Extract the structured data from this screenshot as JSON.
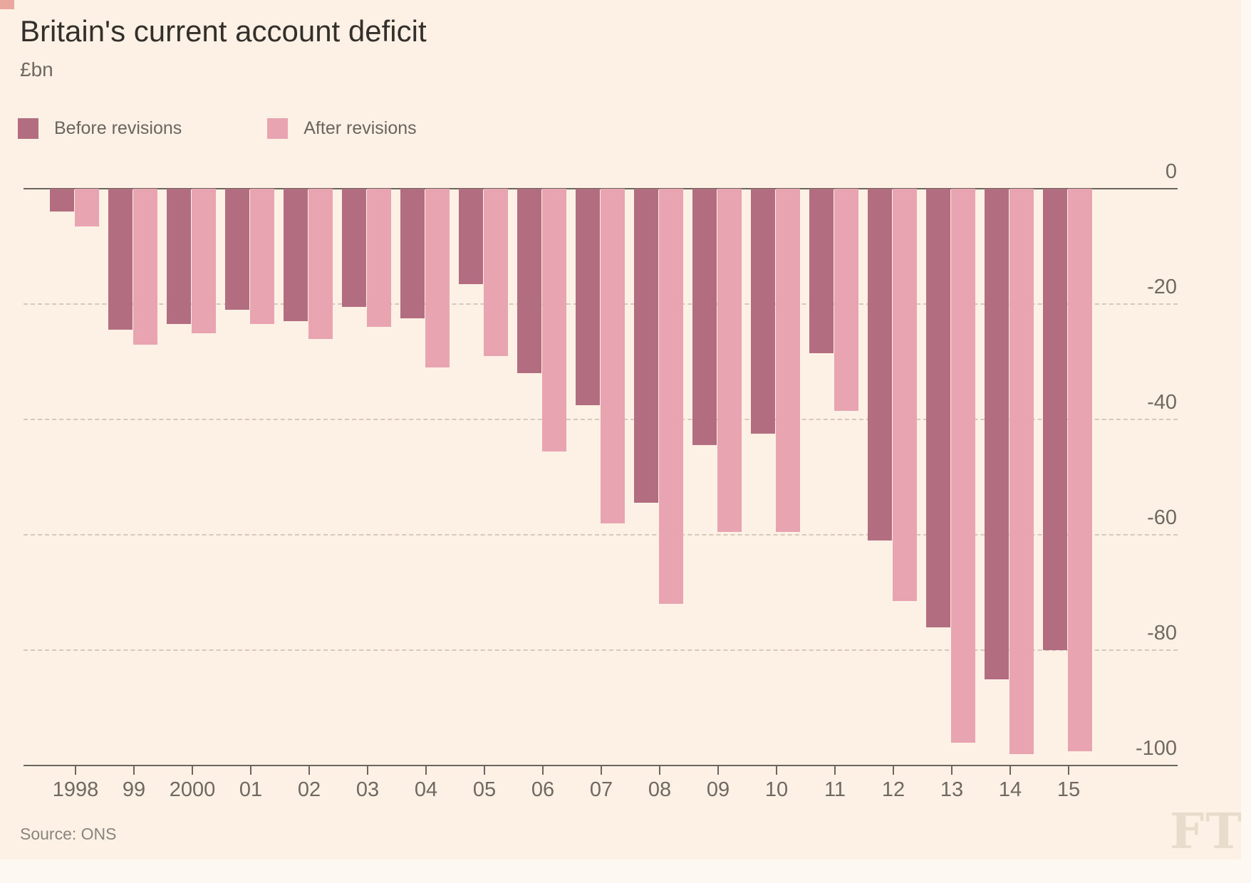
{
  "title": "Britain's current account deficit",
  "subtitle": "£bn",
  "legend": [
    {
      "label": "Before revisions",
      "color": "#b26e80"
    },
    {
      "label": "After revisions",
      "color": "#e8a4b0"
    }
  ],
  "source": "Source: ONS",
  "ft_logo": "FT",
  "chart_data": {
    "type": "bar",
    "title": "Britain's current account deficit",
    "ylabel": "£bn",
    "xlabel": "",
    "categories": [
      "1998",
      "99",
      "2000",
      "01",
      "02",
      "03",
      "04",
      "05",
      "06",
      "07",
      "08",
      "09",
      "10",
      "11",
      "12",
      "13",
      "14",
      "15"
    ],
    "series": [
      {
        "name": "Before revisions",
        "color": "#b26e80",
        "values": [
          -4,
          -24.5,
          -23.5,
          -21,
          -23,
          -20.5,
          -22.5,
          -16.5,
          -32,
          -37.5,
          -54.5,
          -44.5,
          -42.5,
          -28.5,
          -61,
          -76,
          -85,
          -80
        ]
      },
      {
        "name": "After revisions",
        "color": "#e8a4b0",
        "values": [
          -6.5,
          -27,
          -25,
          -23.5,
          -26,
          -24,
          -31,
          -29,
          -45.5,
          -58,
          -72,
          -59.5,
          -59.5,
          -38.5,
          -71.5,
          -96,
          -98,
          -97.5
        ]
      }
    ],
    "ylim": [
      -100,
      0
    ],
    "y_ticks": [
      0,
      -20,
      -40,
      -60,
      -80,
      -100
    ],
    "grid": "horizontal-dashed",
    "legend_position": "top-left"
  }
}
